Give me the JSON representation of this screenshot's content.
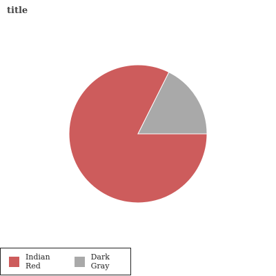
{
  "chart_data": {
    "type": "pie",
    "title": "title",
    "slices": [
      {
        "label": "Indian Red",
        "value": 82.4,
        "color": "#cd5c5c"
      },
      {
        "label": "Dark Gray",
        "value": 17.6,
        "color": "#a9a9a9"
      }
    ],
    "legend_position": "bottom-left"
  }
}
